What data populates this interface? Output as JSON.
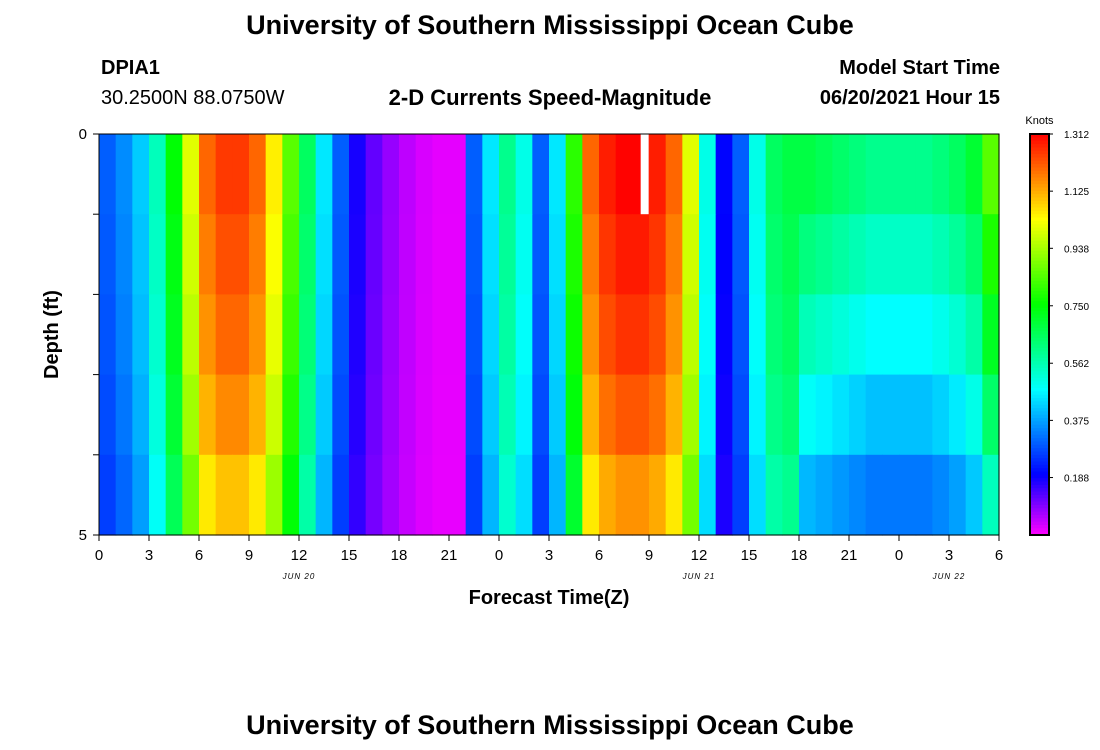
{
  "header": {
    "title": "University of Southern Mississippi Ocean Cube",
    "station": "DPIA1",
    "coords": "30.2500N  88.0750W",
    "subtitle": "2-D Currents Speed-Magnitude",
    "model_label": "Model Start Time",
    "model_time": "06/20/2021 Hour 15"
  },
  "footer": {
    "title": "University of Southern Mississippi Ocean Cube"
  },
  "chart_data": {
    "type": "heatmap",
    "title": "2-D Currents Speed-Magnitude",
    "xlabel": "Forecast Time(Z)",
    "ylabel": "Depth (ft)",
    "x_tick_labels": [
      "0",
      "3",
      "6",
      "9",
      "12",
      "15",
      "18",
      "21",
      "0",
      "3",
      "6",
      "9",
      "12",
      "15",
      "18",
      "21",
      "0",
      "3",
      "6"
    ],
    "date_labels": [
      {
        "label": "JUN 20",
        "hour": 12
      },
      {
        "label": "JUN 21",
        "hour": 36
      },
      {
        "label": "JUN 22",
        "hour": 51
      }
    ],
    "x_range_hours": [
      0,
      54
    ],
    "y_ticks": [
      "0",
      "5"
    ],
    "y_range_ft": [
      0,
      5
    ],
    "depth_rows": 5,
    "colorbar": {
      "unit": "Knots",
      "min": 0,
      "max": 1.312,
      "tick_labels": [
        "1.312",
        "1.125",
        "0.938",
        "0.750",
        "0.562",
        "0.375",
        "0.188"
      ],
      "tick_values": [
        1.312,
        1.125,
        0.938,
        0.75,
        0.562,
        0.375,
        0.188
      ]
    },
    "row_top_depths_ft": [
      0,
      1,
      2,
      3,
      4
    ],
    "speeds_top_row": [
      0.3,
      0.35,
      0.42,
      0.55,
      0.75,
      1.0,
      1.2,
      1.25,
      1.25,
      1.2,
      1.05,
      0.85,
      0.65,
      0.45,
      0.3,
      0.18,
      0.12,
      0.08,
      0.05,
      0.03,
      0.02,
      0.02,
      0.3,
      0.45,
      0.6,
      0.5,
      0.3,
      0.45,
      0.8,
      1.2,
      1.28,
      1.31,
      1.31,
      1.28,
      1.2,
      1.0,
      0.5,
      0.2,
      0.3,
      0.5,
      0.65,
      0.68,
      0.68,
      0.66,
      0.64,
      0.62,
      0.6,
      0.6,
      0.6,
      0.6,
      0.62,
      0.65,
      0.7,
      0.85
    ],
    "row_scale": [
      1.0,
      0.98,
      0.96,
      0.93,
      0.88
    ],
    "missing_cell": {
      "hour": 32.5,
      "row": 0
    }
  }
}
